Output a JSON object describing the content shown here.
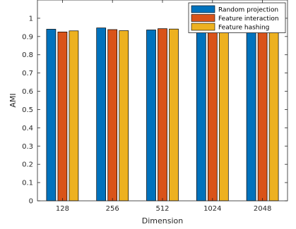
{
  "chart_data": {
    "type": "bar",
    "xlabel": "Dimension",
    "ylabel": "AMI",
    "categories": [
      "128",
      "256",
      "512",
      "1024",
      "2048"
    ],
    "ylim": [
      0,
      1.1
    ],
    "yticks": [
      "0",
      "0.1",
      "0.2",
      "0.3",
      "0.4",
      "0.5",
      "0.6",
      "0.7",
      "0.8",
      "0.9",
      "1"
    ],
    "grid": false,
    "legend_position": "top-right",
    "series": [
      {
        "name": "Random projection",
        "color": "#0072BD",
        "values": [
          0.94,
          0.947,
          0.936,
          0.944,
          0.94
        ]
      },
      {
        "name": "Feature interaction",
        "color": "#D95319",
        "values": [
          0.925,
          0.938,
          0.943,
          0.94,
          0.941
        ]
      },
      {
        "name": "Feature hashing",
        "color": "#EDB120",
        "values": [
          0.931,
          0.932,
          0.941,
          0.941,
          0.941
        ]
      }
    ]
  }
}
